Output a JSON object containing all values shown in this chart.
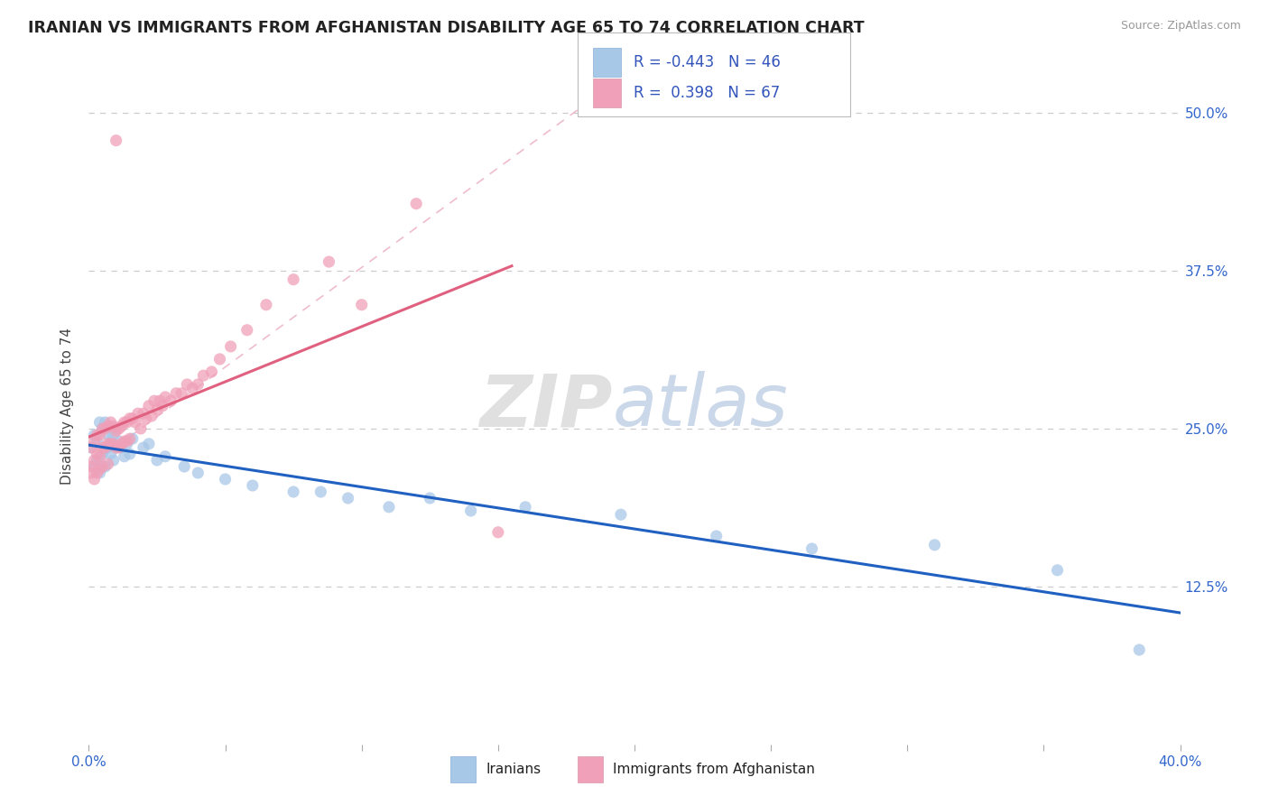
{
  "title": "IRANIAN VS IMMIGRANTS FROM AFGHANISTAN DISABILITY AGE 65 TO 74 CORRELATION CHART",
  "source": "Source: ZipAtlas.com",
  "ylabel": "Disability Age 65 to 74",
  "ytick_labels": [
    "12.5%",
    "25.0%",
    "37.5%",
    "50.0%"
  ],
  "ytick_values": [
    0.125,
    0.25,
    0.375,
    0.5
  ],
  "legend_iranians": "Iranians",
  "legend_afghanistan": "Immigrants from Afghanistan",
  "R_iranians": -0.443,
  "N_iranians": 46,
  "R_afghanistan": 0.398,
  "N_afghanistan": 67,
  "color_iranians": "#a8c8e8",
  "color_afghanistan": "#f0a0b8",
  "line_color_iranians": "#2060c0",
  "line_color_afghanistan": "#e06080",
  "background_color": "#FFFFFF",
  "watermark_zip": "ZIP",
  "watermark_atlas": "atlas",
  "xlim": [
    0.0,
    0.4
  ],
  "ylim": [
    0.0,
    0.535
  ],
  "iranians_x": [
    0.001,
    0.002,
    0.002,
    0.003,
    0.003,
    0.004,
    0.004,
    0.005,
    0.005,
    0.006,
    0.006,
    0.007,
    0.007,
    0.008,
    0.008,
    0.009,
    0.009,
    0.01,
    0.01,
    0.011,
    0.012,
    0.013,
    0.014,
    0.015,
    0.016,
    0.02,
    0.022,
    0.025,
    0.028,
    0.035,
    0.04,
    0.05,
    0.06,
    0.075,
    0.085,
    0.095,
    0.11,
    0.125,
    0.14,
    0.16,
    0.195,
    0.23,
    0.265,
    0.31,
    0.355,
    0.385
  ],
  "iranians_y": [
    0.235,
    0.245,
    0.22,
    0.24,
    0.225,
    0.255,
    0.215,
    0.25,
    0.23,
    0.255,
    0.22,
    0.245,
    0.235,
    0.24,
    0.23,
    0.245,
    0.225,
    0.25,
    0.235,
    0.24,
    0.235,
    0.228,
    0.238,
    0.23,
    0.242,
    0.235,
    0.238,
    0.225,
    0.228,
    0.22,
    0.215,
    0.21,
    0.205,
    0.2,
    0.2,
    0.195,
    0.188,
    0.195,
    0.185,
    0.188,
    0.182,
    0.165,
    0.155,
    0.158,
    0.138,
    0.075
  ],
  "afghanistan_x": [
    0.001,
    0.001,
    0.001,
    0.002,
    0.002,
    0.002,
    0.003,
    0.003,
    0.003,
    0.004,
    0.004,
    0.004,
    0.005,
    0.005,
    0.005,
    0.006,
    0.006,
    0.007,
    0.007,
    0.007,
    0.008,
    0.008,
    0.009,
    0.009,
    0.01,
    0.01,
    0.011,
    0.011,
    0.012,
    0.012,
    0.013,
    0.013,
    0.014,
    0.014,
    0.015,
    0.015,
    0.016,
    0.017,
    0.018,
    0.019,
    0.02,
    0.021,
    0.022,
    0.023,
    0.024,
    0.025,
    0.026,
    0.027,
    0.028,
    0.03,
    0.032,
    0.034,
    0.036,
    0.038,
    0.04,
    0.042,
    0.045,
    0.048,
    0.052,
    0.058,
    0.065,
    0.075,
    0.088,
    0.1,
    0.12,
    0.15,
    0.01
  ],
  "afghanistan_y": [
    0.235,
    0.22,
    0.215,
    0.24,
    0.225,
    0.21,
    0.245,
    0.23,
    0.215,
    0.245,
    0.228,
    0.218,
    0.25,
    0.235,
    0.22,
    0.25,
    0.235,
    0.252,
    0.238,
    0.222,
    0.255,
    0.238,
    0.252,
    0.238,
    0.248,
    0.235,
    0.25,
    0.235,
    0.252,
    0.238,
    0.255,
    0.24,
    0.255,
    0.24,
    0.258,
    0.242,
    0.258,
    0.255,
    0.262,
    0.25,
    0.262,
    0.258,
    0.268,
    0.26,
    0.272,
    0.265,
    0.272,
    0.268,
    0.275,
    0.272,
    0.278,
    0.278,
    0.285,
    0.282,
    0.285,
    0.292,
    0.295,
    0.305,
    0.315,
    0.328,
    0.348,
    0.368,
    0.382,
    0.348,
    0.428,
    0.168,
    0.478
  ],
  "dashed_line_x": [
    0.0,
    0.2
  ],
  "dashed_line_y": [
    0.22,
    0.535
  ]
}
